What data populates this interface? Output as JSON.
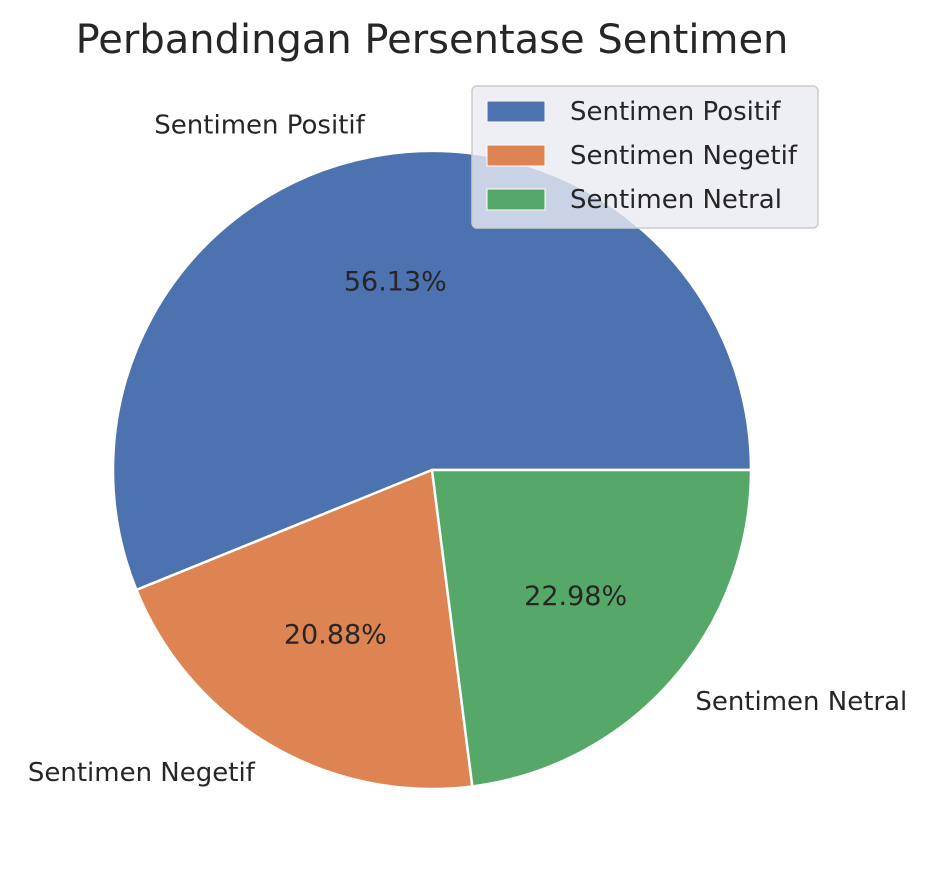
{
  "chart_data": {
    "type": "pie",
    "title": "Perbandingan Persentase Sentimen",
    "categories": [
      "Sentimen Positif",
      "Sentimen Negetif",
      "Sentimen Netral"
    ],
    "values": [
      56.13,
      20.88,
      22.98
    ],
    "value_labels": [
      "56.13%",
      "20.88%",
      "22.98%"
    ],
    "colors": [
      "#4c72b0",
      "#dd8452",
      "#55a868"
    ],
    "start_angle": 0,
    "direction": "counterclockwise",
    "legend": {
      "placement": "upper-right",
      "entries": [
        "Sentimen Positif",
        "Sentimen Negetif",
        "Sentimen Netral"
      ]
    }
  }
}
